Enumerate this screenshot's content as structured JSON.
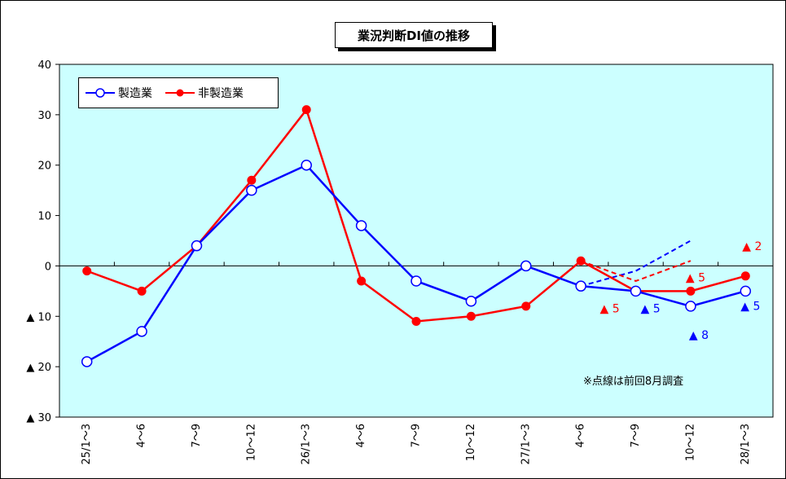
{
  "chart_data": {
    "type": "line",
    "title": "業況判断DI値の推移",
    "categories": [
      "25/1～3",
      "4～6",
      "7～9",
      "10～12",
      "26/1～3",
      "4～6",
      "7～9",
      "10～12",
      "27/1～3",
      "4～6",
      "7～9",
      "10～12",
      "28/1～3"
    ],
    "ylim": [
      -30,
      40
    ],
    "yticks": [
      40,
      30,
      20,
      10,
      0,
      -10,
      -20,
      -30
    ],
    "ytick_labels": [
      "40",
      "30",
      "20",
      "10",
      "0",
      "▲ 10",
      "▲ 20",
      "▲ 30"
    ],
    "series": [
      {
        "name": "製造業",
        "color": "#0000ff",
        "marker": "open-circle",
        "values": [
          -19,
          -13,
          4,
          15,
          20,
          8,
          -3,
          -7,
          0,
          -4,
          -5,
          -8,
          -5
        ]
      },
      {
        "name": "非製造業",
        "color": "#ff0000",
        "marker": "filled-circle",
        "values": [
          -1,
          -5,
          4,
          17,
          31,
          -3,
          -11,
          -10,
          -8,
          1,
          -5,
          -5,
          -2
        ]
      }
    ],
    "previous_forecast": [
      {
        "series": "製造業",
        "color": "#0000ff",
        "x_start": 9,
        "values": [
          -4,
          -1,
          5
        ]
      },
      {
        "series": "非製造業",
        "color": "#ff0000",
        "x_start": 9,
        "values": [
          1,
          -3,
          1
        ]
      }
    ],
    "data_labels": [
      {
        "text": "▲ 5",
        "color": "#ff0000",
        "cat": 10,
        "value": -5
      },
      {
        "text": "▲ 5",
        "color": "#0000ff",
        "cat": 10,
        "value": -5
      },
      {
        "text": "▲ 5",
        "color": "#ff0000",
        "cat": 11,
        "value": -5
      },
      {
        "text": "▲ 8",
        "color": "#0000ff",
        "cat": 11,
        "value": -8
      },
      {
        "text": "▲ 2",
        "color": "#ff0000",
        "cat": 12,
        "value": -2
      },
      {
        "text": "▲ 5",
        "color": "#0000ff",
        "cat": 12,
        "value": -5
      }
    ],
    "note": "※点線は前回8月調査",
    "plot_background": "#ccffff",
    "legend_position": "top-left"
  }
}
